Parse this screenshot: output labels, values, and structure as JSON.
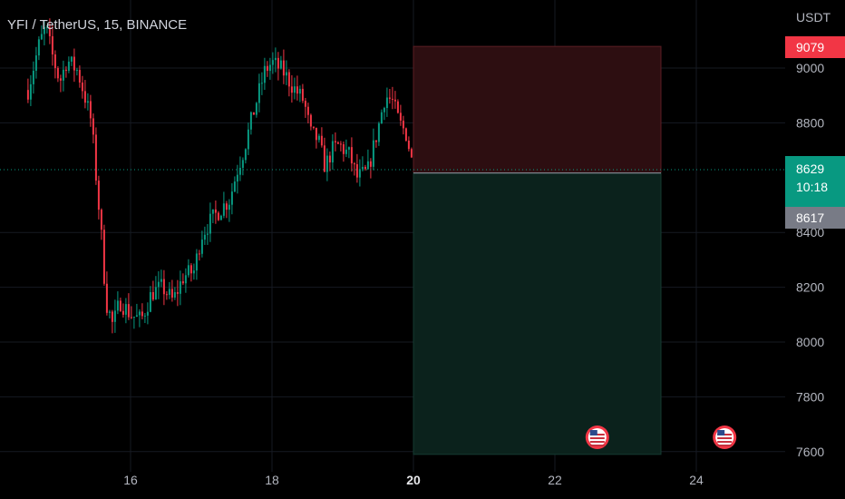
{
  "title": "YFI / TetherUS, 15, BINANCE",
  "price_axis": {
    "currency": "USDT",
    "ticks": [
      "9000",
      "8800",
      "8400",
      "8200",
      "8000",
      "7800",
      "7600"
    ]
  },
  "time_axis": {
    "ticks": [
      "16",
      "18",
      "20",
      "22",
      "24"
    ],
    "bold_tick": "20"
  },
  "price_tags": {
    "stop_price": "9079",
    "last_price": "8629",
    "countdown": "10:18",
    "entry_price": "8617"
  },
  "colors": {
    "up": "#089981",
    "down": "#f23645",
    "stop_zone": "#2d0e11",
    "target_zone": "#0b221c"
  },
  "chart_data": {
    "type": "candlestick",
    "symbol": "YFI / TetherUS",
    "interval": "15",
    "exchange": "BINANCE",
    "y_range": [
      7580,
      9180
    ],
    "x_range": [
      14.55,
      24.6
    ],
    "current_price": 8629,
    "path_points": [
      [
        14.55,
        8920
      ],
      [
        14.7,
        9080
      ],
      [
        14.8,
        9150
      ],
      [
        14.9,
        9040
      ],
      [
        15.0,
        8950
      ],
      [
        15.1,
        9030
      ],
      [
        15.25,
        8990
      ],
      [
        15.35,
        8900
      ],
      [
        15.45,
        8800
      ],
      [
        15.5,
        8640
      ],
      [
        15.6,
        8350
      ],
      [
        15.65,
        8150
      ],
      [
        15.75,
        8060
      ],
      [
        15.85,
        8150
      ],
      [
        16.0,
        8100
      ],
      [
        16.15,
        8080
      ],
      [
        16.3,
        8180
      ],
      [
        16.45,
        8200
      ],
      [
        16.6,
        8150
      ],
      [
        16.75,
        8240
      ],
      [
        16.9,
        8260
      ],
      [
        17.0,
        8390
      ],
      [
        17.1,
        8430
      ],
      [
        17.25,
        8480
      ],
      [
        17.4,
        8520
      ],
      [
        17.5,
        8620
      ],
      [
        17.6,
        8700
      ],
      [
        17.75,
        8850
      ],
      [
        17.9,
        8990
      ],
      [
        18.0,
        9020
      ],
      [
        18.15,
        8990
      ],
      [
        18.3,
        8930
      ],
      [
        18.45,
        8880
      ],
      [
        18.55,
        8760
      ],
      [
        18.65,
        8740
      ],
      [
        18.75,
        8640
      ],
      [
        18.85,
        8700
      ],
      [
        18.95,
        8720
      ],
      [
        19.1,
        8680
      ],
      [
        19.2,
        8600
      ],
      [
        19.35,
        8620
      ],
      [
        19.5,
        8780
      ],
      [
        19.6,
        8900
      ],
      [
        19.7,
        8880
      ],
      [
        19.8,
        8800
      ],
      [
        19.9,
        8760
      ],
      [
        20.0,
        8629
      ]
    ],
    "position_tool": {
      "type": "short",
      "start_x": 20.0,
      "end_x": 23.5,
      "entry": 8617,
      "stop": 9079,
      "target": 7590
    },
    "event_markers": [
      {
        "x": 22.6,
        "icon": "us-flag-icon"
      },
      {
        "x": 24.4,
        "icon": "us-flag-icon"
      }
    ]
  }
}
